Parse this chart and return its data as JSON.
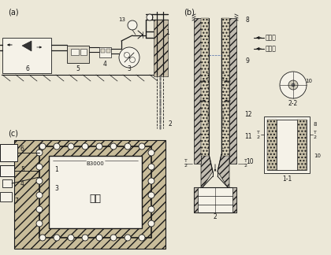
{
  "bg": "#ece8d8",
  "lc": "#1a1a1a",
  "label_a": "(a)",
  "label_b": "(b)",
  "label_c": "(c)",
  "jikeng": "基坑",
  "gaoyashui": "高压水",
  "dixiashui": "地下水",
  "b3000": "B3000",
  "s11": "1-1",
  "s22": "2-2",
  "hatch_soil": "////",
  "fc_soil": "#c8bc9a",
  "fc_wall": "#b8b0a0",
  "fc_white": "#f5f2e8",
  "fc_box": "#ddd8c8"
}
